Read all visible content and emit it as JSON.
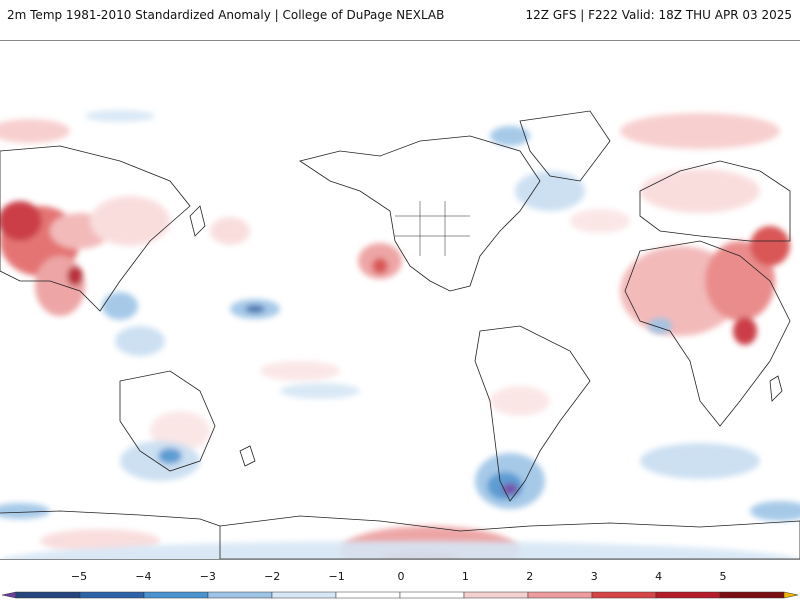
{
  "header": {
    "title": "2m Temp 1981-2010 Standardized Anomaly | College of DuPage NEXLAB",
    "run_info": "12Z GFS | F222 Valid: 18Z THU APR 03 2025"
  },
  "colorbar": {
    "ticks": [
      "−5",
      "−4",
      "−3",
      "−2",
      "−1",
      "0",
      "1",
      "2",
      "3",
      "4",
      "5"
    ],
    "colors": [
      "#6a3fa0",
      "#26457e",
      "#2f63a8",
      "#4b93cf",
      "#9dc4e6",
      "#d6e6f5",
      "#ffffff",
      "#ffffff",
      "#f5d0d0",
      "#ec9c9c",
      "#d64545",
      "#b41c2a",
      "#7a0e12",
      "#f0b800"
    ]
  },
  "map": {
    "land_outline_color": "#222222",
    "ocean_color": "#ffffff"
  }
}
